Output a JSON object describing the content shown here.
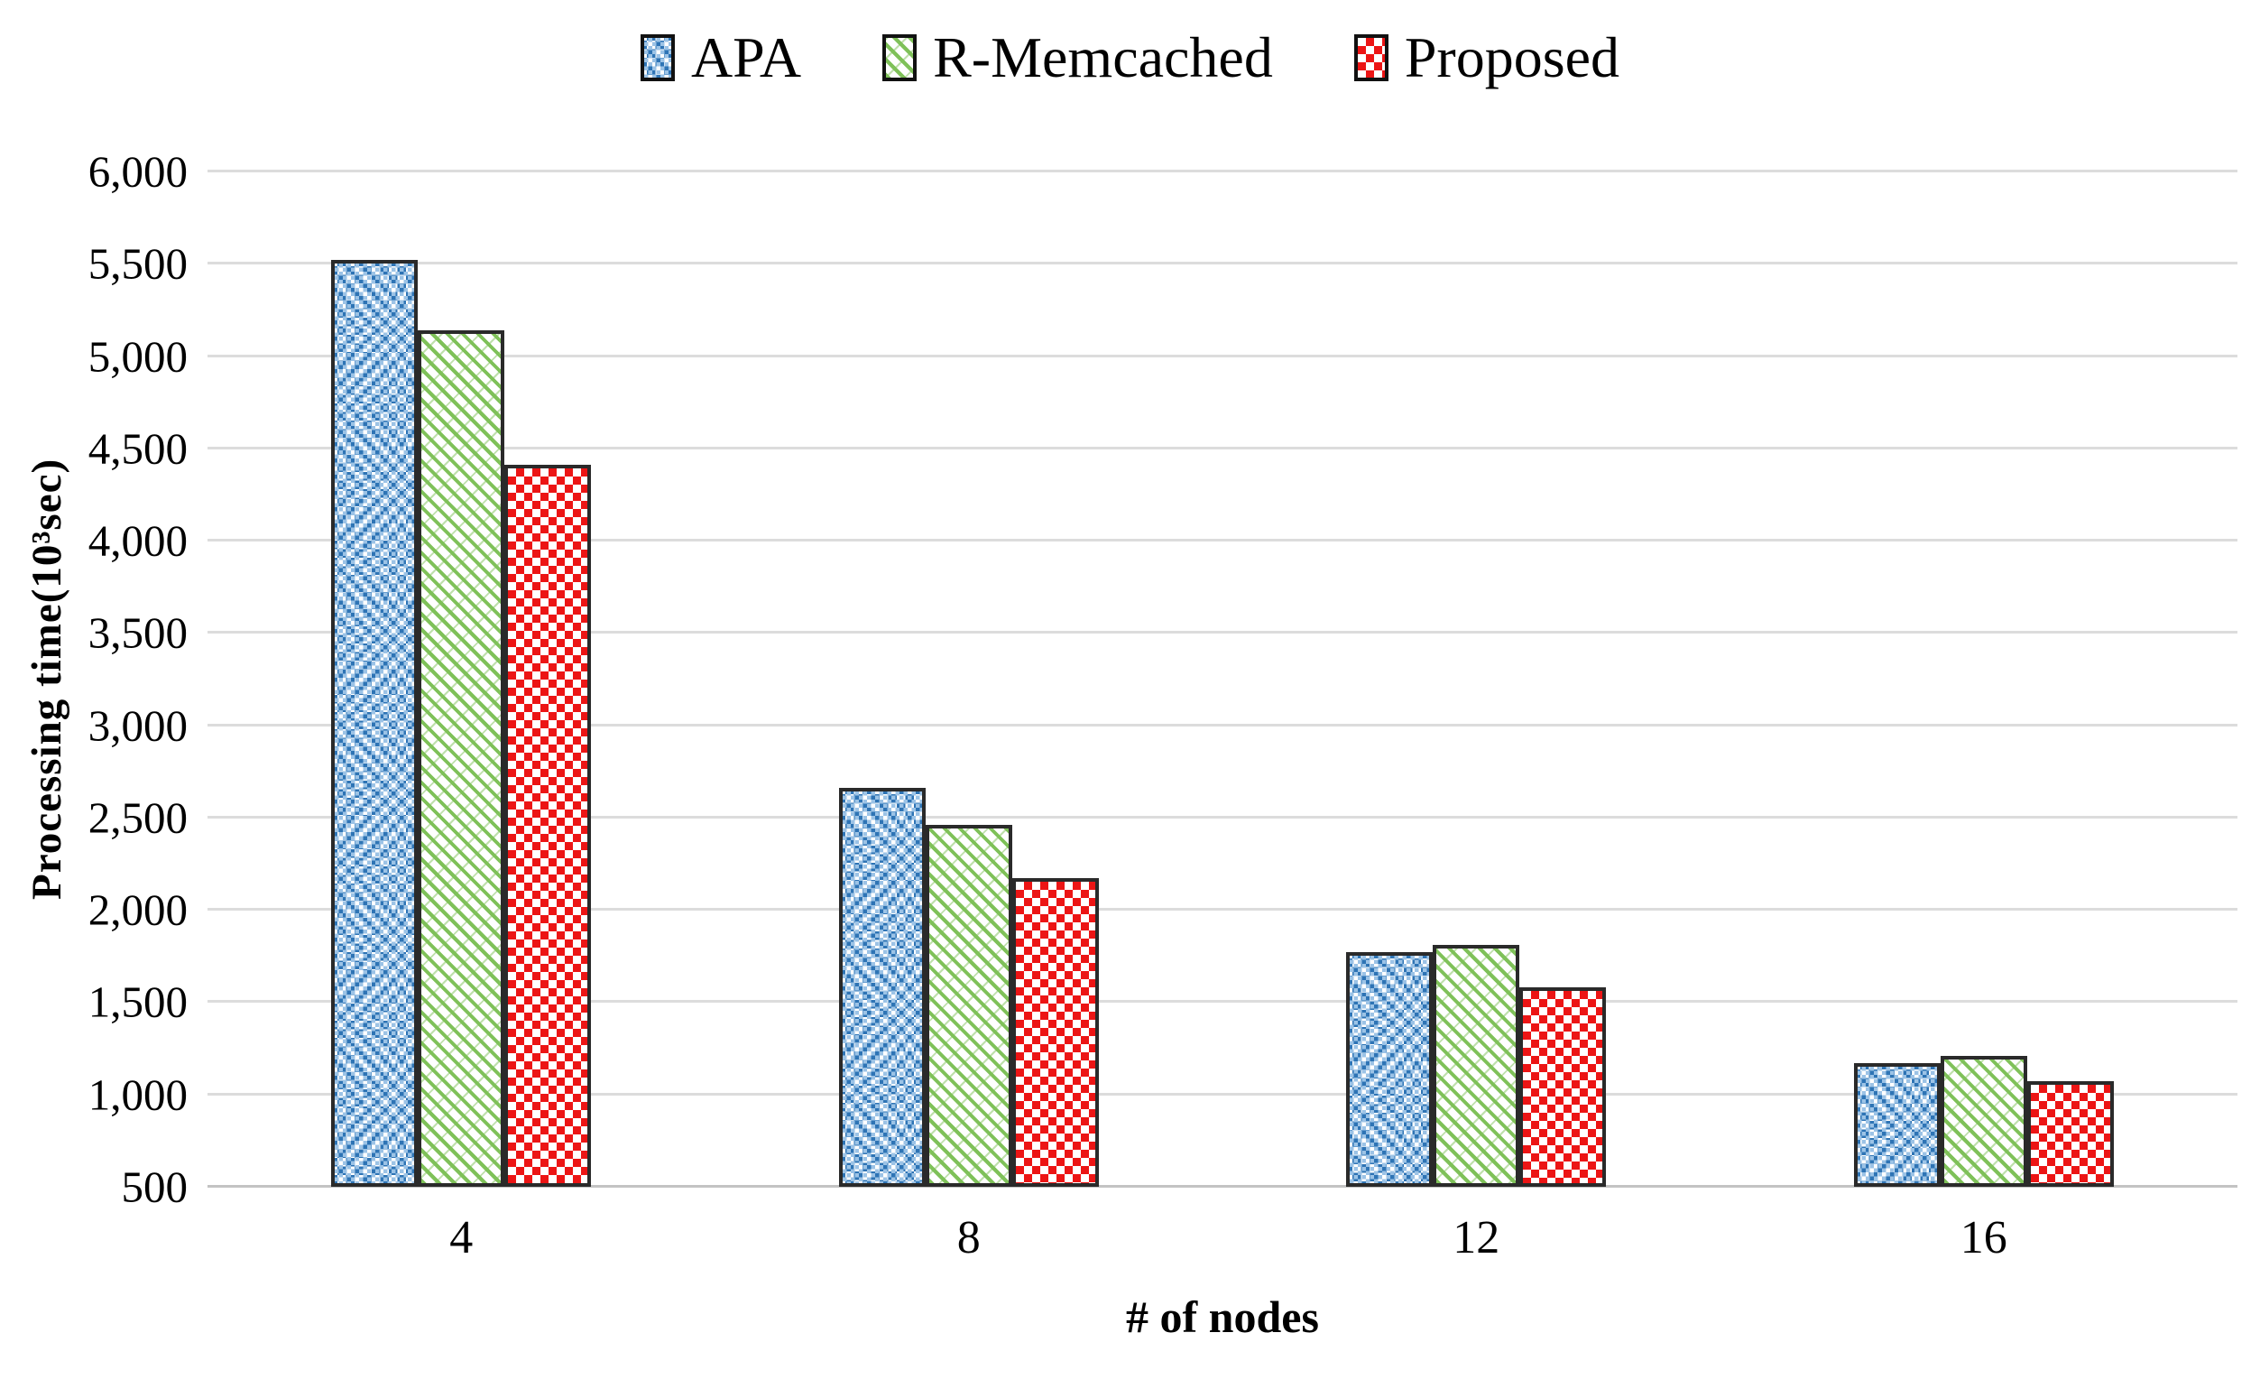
{
  "chart_data": {
    "type": "bar",
    "title": "",
    "categories": [
      "4",
      "8",
      "12",
      "16"
    ],
    "series": [
      {
        "name": "APA",
        "slug": "apa",
        "pattern": "blue-dotted",
        "color": "#2e74b5",
        "values": [
          5520,
          2660,
          1770,
          1170
        ]
      },
      {
        "name": "R-Memcached",
        "slug": "r-memcached",
        "pattern": "green-diagonal-hatch",
        "color": "#7fc159",
        "values": [
          5140,
          2460,
          1810,
          1210
        ]
      },
      {
        "name": "Proposed",
        "slug": "proposed",
        "pattern": "red-checker",
        "color": "#ec1515",
        "values": [
          4410,
          2170,
          1580,
          1070
        ]
      }
    ],
    "xlabel": "# of nodes",
    "ylabel": "Processing time(10³sec)",
    "ylim": [
      500,
      6000
    ],
    "ytick_step": 500,
    "yticks": [
      "6,000",
      "5,500",
      "5,000",
      "4,500",
      "4,000",
      "3,500",
      "3,000",
      "2,500",
      "2,000",
      "1,500",
      "1,000",
      "500"
    ],
    "grid": "horizontal-only",
    "grid_color": "#dcdcdc",
    "bar_border_color": "#2a2a2a",
    "legend_position": "top-center"
  }
}
